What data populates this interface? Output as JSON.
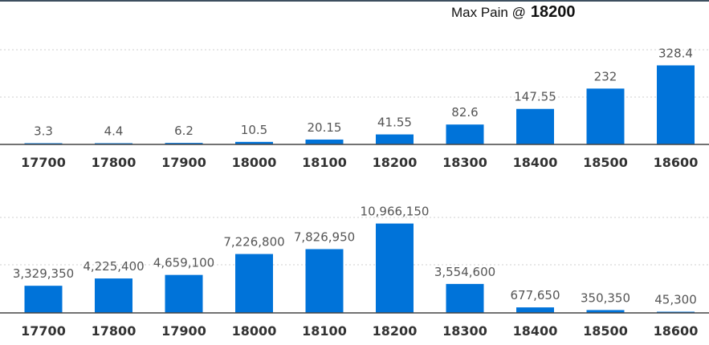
{
  "header": {
    "max_pain_label": "Max Pain @",
    "max_pain_value": "18200"
  },
  "colors": {
    "bar": "#0073d9",
    "axis": "#444444",
    "grid": "#cfcfcf"
  },
  "chart_data": [
    {
      "type": "bar",
      "categories": [
        "17700",
        "17800",
        "17900",
        "18000",
        "18100",
        "18200",
        "18300",
        "18400",
        "18500",
        "18600"
      ],
      "values": [
        3.3,
        4.4,
        6.2,
        10.5,
        20.15,
        41.55,
        82.6,
        147.55,
        232,
        328.4
      ],
      "value_labels": [
        "3.3",
        "4.4",
        "6.2",
        "10.5",
        "20.15",
        "41.55",
        "82.6",
        "147.55",
        "232",
        "328.4"
      ],
      "ylim": [
        0,
        400
      ],
      "grid": true
    },
    {
      "type": "bar",
      "categories": [
        "17700",
        "17800",
        "17900",
        "18000",
        "18100",
        "18200",
        "18300",
        "18400",
        "18500",
        "18600"
      ],
      "values": [
        3329350,
        4225400,
        4659100,
        7226800,
        7826950,
        10966150,
        3554600,
        677650,
        350350,
        45300
      ],
      "value_labels": [
        "3,329,350",
        "4,225,400",
        "4,659,100",
        "7,226,800",
        "7,826,950",
        "10,966,150",
        "3,554,600",
        "677,650",
        "350,350",
        "45,300"
      ],
      "ylim": [
        0,
        12600000
      ],
      "grid": true
    }
  ]
}
